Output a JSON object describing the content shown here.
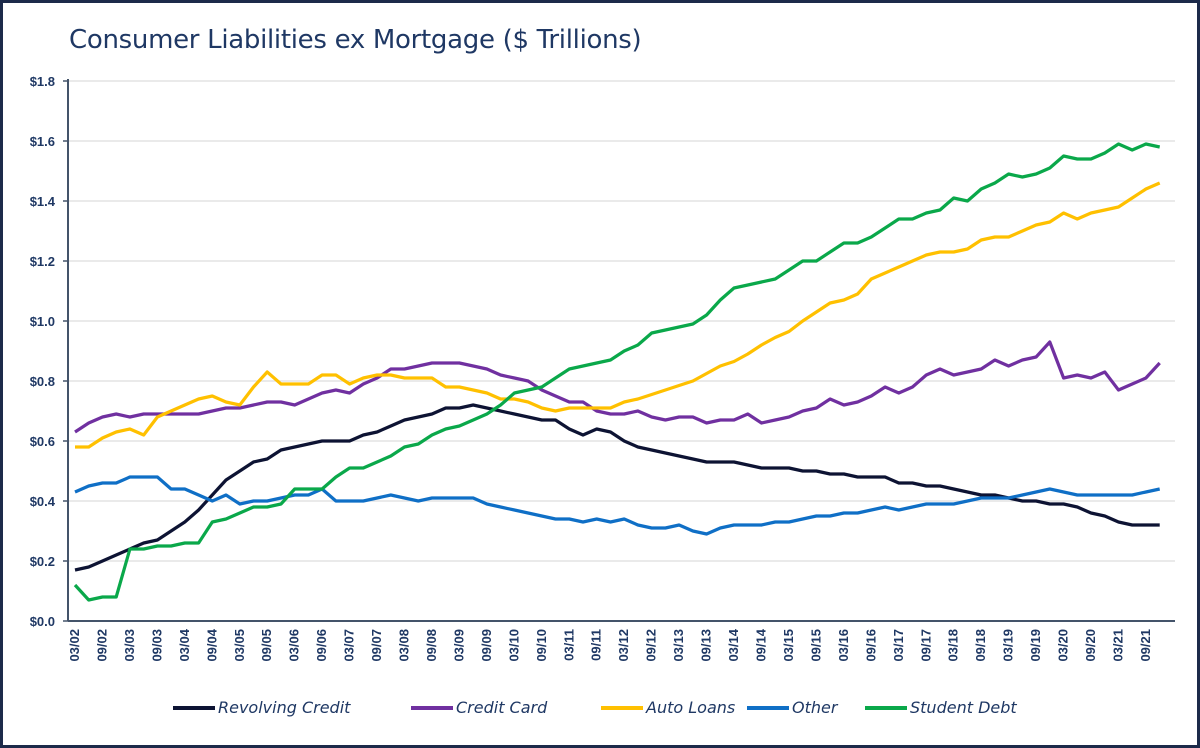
{
  "chart_data": {
    "type": "line",
    "title": "Consumer Liabilities ex Mortgage ($ Trillions)",
    "xlabel": "",
    "ylabel": "",
    "ylim": [
      0,
      1.8
    ],
    "y_ticks": [
      "$0.0",
      "$0.2",
      "$0.4",
      "$0.6",
      "$0.8",
      "$1.0",
      "$1.2",
      "$1.4",
      "$1.6",
      "$1.8"
    ],
    "grid": "horizontal",
    "legend_position": "bottom",
    "x_tick_labels": [
      "03/02",
      "09/02",
      "03/03",
      "09/03",
      "03/04",
      "09/04",
      "03/05",
      "09/05",
      "03/06",
      "09/06",
      "03/07",
      "09/07",
      "03/08",
      "09/08",
      "03/09",
      "09/09",
      "03/10",
      "09/10",
      "03/11",
      "09/11",
      "03/12",
      "09/12",
      "03/13",
      "09/13",
      "03/14",
      "09/14",
      "03/15",
      "09/15",
      "03/16",
      "09/16",
      "03/17",
      "09/17",
      "03/18",
      "09/18",
      "03/19",
      "09/19",
      "03/20",
      "09/20",
      "03/21",
      "09/21"
    ],
    "x": [
      "03/02",
      "06/02",
      "09/02",
      "12/02",
      "03/03",
      "06/03",
      "09/03",
      "12/03",
      "03/04",
      "06/04",
      "09/04",
      "12/04",
      "03/05",
      "06/05",
      "09/05",
      "12/05",
      "03/06",
      "06/06",
      "09/06",
      "12/06",
      "03/07",
      "06/07",
      "09/07",
      "12/07",
      "03/08",
      "06/08",
      "09/08",
      "12/08",
      "03/09",
      "06/09",
      "09/09",
      "12/09",
      "03/10",
      "06/10",
      "09/10",
      "12/10",
      "03/11",
      "06/11",
      "09/11",
      "12/11",
      "03/12",
      "06/12",
      "09/12",
      "12/12",
      "03/13",
      "06/13",
      "09/13",
      "12/13",
      "03/14",
      "06/14",
      "09/14",
      "12/14",
      "03/15",
      "06/15",
      "09/15",
      "12/15",
      "03/16",
      "06/16",
      "09/16",
      "12/16",
      "03/17",
      "06/17",
      "09/17",
      "12/17",
      "03/18",
      "06/18",
      "09/18",
      "12/18",
      "03/19",
      "06/19",
      "09/19",
      "12/19",
      "03/20",
      "06/20",
      "09/20",
      "12/20",
      "03/21",
      "06/21",
      "09/21",
      "12/21"
    ],
    "series": [
      {
        "name": "Revolving Credit",
        "color": "#0d1333",
        "values": [
          0.17,
          0.18,
          0.2,
          0.22,
          0.24,
          0.26,
          0.27,
          0.3,
          0.33,
          0.37,
          0.42,
          0.47,
          0.5,
          0.53,
          0.54,
          0.57,
          0.58,
          0.59,
          0.6,
          0.6,
          0.6,
          0.62,
          0.63,
          0.65,
          0.67,
          0.68,
          0.69,
          0.71,
          0.71,
          0.72,
          0.71,
          0.7,
          0.69,
          0.68,
          0.67,
          0.67,
          0.64,
          0.62,
          0.64,
          0.63,
          0.6,
          0.58,
          0.57,
          0.56,
          0.55,
          0.54,
          0.53,
          0.53,
          0.53,
          0.52,
          0.51,
          0.51,
          0.51,
          0.5,
          0.5,
          0.49,
          0.49,
          0.48,
          0.48,
          0.48,
          0.46,
          0.46,
          0.45,
          0.45,
          0.44,
          0.43,
          0.42,
          0.42,
          0.41,
          0.4,
          0.4,
          0.39,
          0.39,
          0.38,
          0.36,
          0.35,
          0.33,
          0.32,
          0.32,
          0.32
        ]
      },
      {
        "name": "Credit Card",
        "color": "#7030a0",
        "values": [
          0.63,
          0.66,
          0.68,
          0.69,
          0.68,
          0.69,
          0.69,
          0.69,
          0.69,
          0.69,
          0.7,
          0.71,
          0.71,
          0.72,
          0.73,
          0.73,
          0.72,
          0.74,
          0.76,
          0.77,
          0.76,
          0.79,
          0.81,
          0.84,
          0.84,
          0.85,
          0.86,
          0.86,
          0.86,
          0.85,
          0.84,
          0.82,
          0.81,
          0.8,
          0.77,
          0.75,
          0.73,
          0.73,
          0.7,
          0.69,
          0.69,
          0.7,
          0.68,
          0.67,
          0.68,
          0.68,
          0.66,
          0.67,
          0.67,
          0.69,
          0.66,
          0.67,
          0.68,
          0.7,
          0.71,
          0.74,
          0.72,
          0.73,
          0.75,
          0.78,
          0.76,
          0.78,
          0.82,
          0.84,
          0.82,
          0.83,
          0.84,
          0.87,
          0.85,
          0.87,
          0.88,
          0.93,
          0.81,
          0.82,
          0.81,
          0.83,
          0.77,
          0.79,
          0.81,
          0.86
        ]
      },
      {
        "name": "Auto Loans",
        "color": "#ffc000",
        "values": [
          0.58,
          0.58,
          0.61,
          0.63,
          0.64,
          0.62,
          0.68,
          0.7,
          0.72,
          0.74,
          0.75,
          0.73,
          0.72,
          0.78,
          0.83,
          0.79,
          0.79,
          0.79,
          0.82,
          0.82,
          0.79,
          0.81,
          0.82,
          0.82,
          0.81,
          0.81,
          0.81,
          0.78,
          0.78,
          0.77,
          0.76,
          0.74,
          0.74,
          0.73,
          0.71,
          0.7,
          0.71,
          0.71,
          0.71,
          0.71,
          0.73,
          0.74,
          0.755,
          0.77,
          0.785,
          0.8,
          0.825,
          0.85,
          0.865,
          0.89,
          0.92,
          0.945,
          0.965,
          1.0,
          1.03,
          1.06,
          1.07,
          1.09,
          1.14,
          1.16,
          1.18,
          1.2,
          1.22,
          1.23,
          1.23,
          1.24,
          1.27,
          1.28,
          1.28,
          1.3,
          1.32,
          1.33,
          1.36,
          1.34,
          1.36,
          1.37,
          1.38,
          1.41,
          1.44,
          1.46
        ]
      },
      {
        "name": "Other",
        "color": "#0f6fc6",
        "values": [
          0.43,
          0.45,
          0.46,
          0.46,
          0.48,
          0.48,
          0.48,
          0.44,
          0.44,
          0.42,
          0.4,
          0.42,
          0.39,
          0.4,
          0.4,
          0.41,
          0.42,
          0.42,
          0.44,
          0.4,
          0.4,
          0.4,
          0.41,
          0.42,
          0.41,
          0.4,
          0.41,
          0.41,
          0.41,
          0.41,
          0.39,
          0.38,
          0.37,
          0.36,
          0.35,
          0.34,
          0.34,
          0.33,
          0.34,
          0.33,
          0.34,
          0.32,
          0.31,
          0.31,
          0.32,
          0.3,
          0.29,
          0.31,
          0.32,
          0.32,
          0.32,
          0.33,
          0.33,
          0.34,
          0.35,
          0.35,
          0.36,
          0.36,
          0.37,
          0.38,
          0.37,
          0.38,
          0.39,
          0.39,
          0.39,
          0.4,
          0.41,
          0.41,
          0.41,
          0.42,
          0.43,
          0.44,
          0.43,
          0.42,
          0.42,
          0.42,
          0.42,
          0.42,
          0.43,
          0.44
        ]
      },
      {
        "name": "Student Debt",
        "color": "#0aa84a",
        "values": [
          0.12,
          0.07,
          0.08,
          0.08,
          0.24,
          0.24,
          0.25,
          0.25,
          0.26,
          0.26,
          0.33,
          0.34,
          0.36,
          0.38,
          0.38,
          0.39,
          0.44,
          0.44,
          0.44,
          0.48,
          0.51,
          0.51,
          0.53,
          0.55,
          0.58,
          0.59,
          0.62,
          0.64,
          0.65,
          0.67,
          0.69,
          0.72,
          0.76,
          0.77,
          0.78,
          0.81,
          0.84,
          0.85,
          0.86,
          0.87,
          0.9,
          0.92,
          0.96,
          0.97,
          0.98,
          0.99,
          1.02,
          1.07,
          1.11,
          1.12,
          1.13,
          1.14,
          1.17,
          1.2,
          1.2,
          1.23,
          1.26,
          1.26,
          1.28,
          1.31,
          1.34,
          1.34,
          1.36,
          1.37,
          1.41,
          1.4,
          1.44,
          1.46,
          1.49,
          1.48,
          1.49,
          1.51,
          1.55,
          1.54,
          1.54,
          1.56,
          1.59,
          1.57,
          1.59,
          1.58
        ]
      }
    ]
  }
}
